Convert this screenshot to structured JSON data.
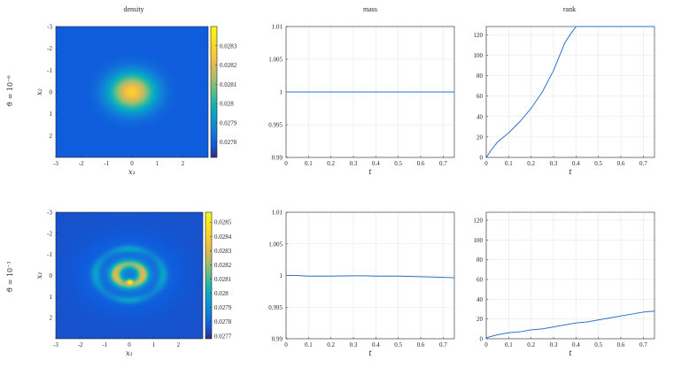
{
  "column_titles": [
    "density",
    "mass",
    "rank"
  ],
  "row_labels": [
    "ϑ = 10⁻⁶",
    "ϑ = 10⁻³"
  ],
  "colors": {
    "line": "#2f72c8",
    "grid": "#e6e6e6",
    "axis": "#262626"
  },
  "chart_data": [
    {
      "type": "heatmap",
      "panel": "density-row1",
      "title": "density",
      "xlabel": "x₁",
      "ylabel": "x₂",
      "xlim": [
        -3,
        3
      ],
      "ylim": [
        -3,
        3
      ],
      "y_reversed": true,
      "xticks": [
        -3,
        -2,
        -1,
        0,
        1,
        2
      ],
      "yticks": [
        -3,
        -2,
        -1,
        0,
        1,
        2
      ],
      "colorbar": {
        "min": 0.02772,
        "max": 0.0284,
        "ticks": [
          0.0278,
          0.0279,
          0.028,
          0.0281,
          0.0282,
          0.0283
        ],
        "tick_labels": [
          "0.0278",
          "0.0279",
          "0.028",
          "0.0281",
          "0.0282",
          "0.0283"
        ]
      },
      "field": {
        "kind": "gaussian",
        "sigma": 0.62
      }
    },
    {
      "type": "line",
      "panel": "mass-row1",
      "title": "mass",
      "xlabel": "t",
      "xlim": [
        0,
        0.75
      ],
      "ylim": [
        0.99,
        1.01
      ],
      "xticks": [
        0,
        0.1,
        0.2,
        0.3,
        0.4,
        0.5,
        0.6,
        0.7
      ],
      "yticks": [
        0.99,
        0.995,
        1,
        1.005,
        1.01
      ],
      "ytick_labels": [
        "0.99",
        "0.995",
        "1",
        "1.005",
        "1.01"
      ],
      "x": [
        0,
        0.1,
        0.2,
        0.3,
        0.4,
        0.5,
        0.6,
        0.75
      ],
      "y": [
        1.0,
        1.0,
        1.0,
        1.0,
        1.0,
        1.0,
        1.0,
        1.0
      ],
      "grid": true
    },
    {
      "type": "line",
      "panel": "rank-row1",
      "title": "rank",
      "xlabel": "t",
      "xlim": [
        0,
        0.75
      ],
      "ylim": [
        0,
        128
      ],
      "xticks": [
        0,
        0.1,
        0.2,
        0.3,
        0.4,
        0.5,
        0.6,
        0.7
      ],
      "yticks": [
        0,
        20,
        40,
        60,
        80,
        100,
        120
      ],
      "x": [
        0,
        0.025,
        0.05,
        0.1,
        0.15,
        0.2,
        0.25,
        0.3,
        0.35,
        0.38,
        0.4,
        0.45,
        0.5,
        0.6,
        0.7,
        0.75
      ],
      "y": [
        0,
        8,
        15,
        24,
        35,
        48,
        64,
        85,
        112,
        122,
        128,
        128,
        128,
        128,
        128,
        128
      ],
      "grid": true
    },
    {
      "type": "heatmap",
      "panel": "density-row2",
      "title": "",
      "xlabel": "x₁",
      "ylabel": "x₂",
      "xlim": [
        -3,
        3
      ],
      "ylim": [
        -3,
        3
      ],
      "y_reversed": true,
      "xticks": [
        -3,
        -2,
        -1,
        0,
        1,
        2
      ],
      "yticks": [
        -3,
        -2,
        -1,
        0,
        1,
        2
      ],
      "colorbar": {
        "min": 0.02768,
        "max": 0.02857,
        "ticks": [
          0.0277,
          0.0278,
          0.0279,
          0.028,
          0.0281,
          0.0282,
          0.0283,
          0.0284,
          0.0285
        ],
        "tick_labels": [
          "0.0277",
          "0.0278",
          "0.0279",
          "0.028",
          "0.0281",
          "0.0282",
          "0.0283",
          "0.0284",
          "0.0285"
        ]
      },
      "field": {
        "kind": "rings"
      }
    },
    {
      "type": "line",
      "panel": "mass-row2",
      "title": "",
      "xlabel": "t",
      "xlim": [
        0,
        0.75
      ],
      "ylim": [
        0.99,
        1.01
      ],
      "xticks": [
        0,
        0.1,
        0.2,
        0.3,
        0.4,
        0.5,
        0.6,
        0.7
      ],
      "yticks": [
        0.99,
        0.995,
        1,
        1.005,
        1.01
      ],
      "ytick_labels": [
        "0.99",
        "0.995",
        "1",
        "1.005",
        "1.01"
      ],
      "x": [
        0,
        0.05,
        0.1,
        0.2,
        0.3,
        0.35,
        0.4,
        0.5,
        0.6,
        0.7,
        0.75
      ],
      "y": [
        1.0,
        1.0,
        0.9999,
        0.9999,
        0.99995,
        0.99995,
        0.9999,
        0.9999,
        0.9998,
        0.9997,
        0.99965
      ],
      "grid": true
    },
    {
      "type": "line",
      "panel": "rank-row2",
      "title": "",
      "xlabel": "t",
      "xlim": [
        0,
        0.75
      ],
      "ylim": [
        0,
        128
      ],
      "xticks": [
        0,
        0.1,
        0.2,
        0.3,
        0.4,
        0.5,
        0.6,
        0.7
      ],
      "yticks": [
        0,
        20,
        40,
        60,
        80,
        100,
        120
      ],
      "x": [
        0,
        0.05,
        0.1,
        0.15,
        0.2,
        0.25,
        0.3,
        0.35,
        0.4,
        0.45,
        0.5,
        0.55,
        0.6,
        0.65,
        0.7,
        0.75
      ],
      "y": [
        1,
        4,
        6,
        7,
        9,
        10,
        12,
        14,
        16,
        17,
        19,
        21,
        23,
        25,
        27,
        28
      ],
      "grid": true
    }
  ]
}
